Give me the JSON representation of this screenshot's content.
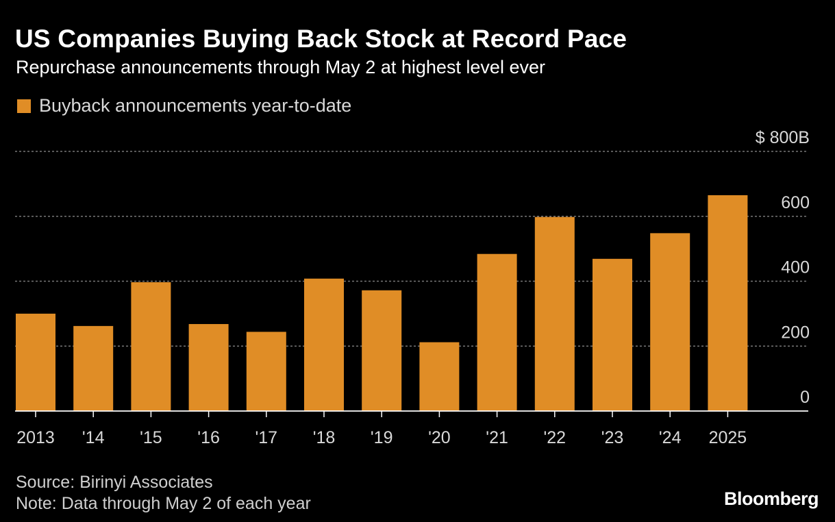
{
  "header": {
    "title": "US Companies Buying Back Stock at Record Pace",
    "subtitle": "Repurchase announcements through May 2 at highest level ever"
  },
  "colors": {
    "bar": "#e08d26",
    "background": "#000000",
    "grid": "#777777",
    "axis": "#ffffff",
    "tick_text": "#d9d9d9"
  },
  "chart_data": {
    "type": "bar",
    "title": "US Companies Buying Back Stock at Record Pace",
    "subtitle": "Repurchase announcements through May 2 at highest level ever",
    "legend": [
      "Buyback announcements year-to-date"
    ],
    "legend_position": "top-left",
    "categories": [
      "2013",
      "'14",
      "'15",
      "'16",
      "'17",
      "'18",
      "'19",
      "'20",
      "'21",
      "'22",
      "'23",
      "'24",
      "2025"
    ],
    "series": [
      {
        "name": "Buyback announcements year-to-date",
        "values": [
          300,
          262,
          397,
          268,
          244,
          408,
          372,
          212,
          484,
          598,
          469,
          548,
          665
        ]
      }
    ],
    "y_ticks": [
      0,
      200,
      400,
      600,
      800
    ],
    "y_tick_labels": [
      "0",
      "200",
      "400",
      "600",
      "$ 800B"
    ],
    "ylim": [
      0,
      800
    ],
    "y_axis_position": "right",
    "grid": true,
    "xlabel": "",
    "ylabel": ""
  },
  "footer": {
    "source": "Source: Birinyi Associates",
    "note": "Note: Data through May 2 of each year",
    "brand": "Bloomberg"
  }
}
